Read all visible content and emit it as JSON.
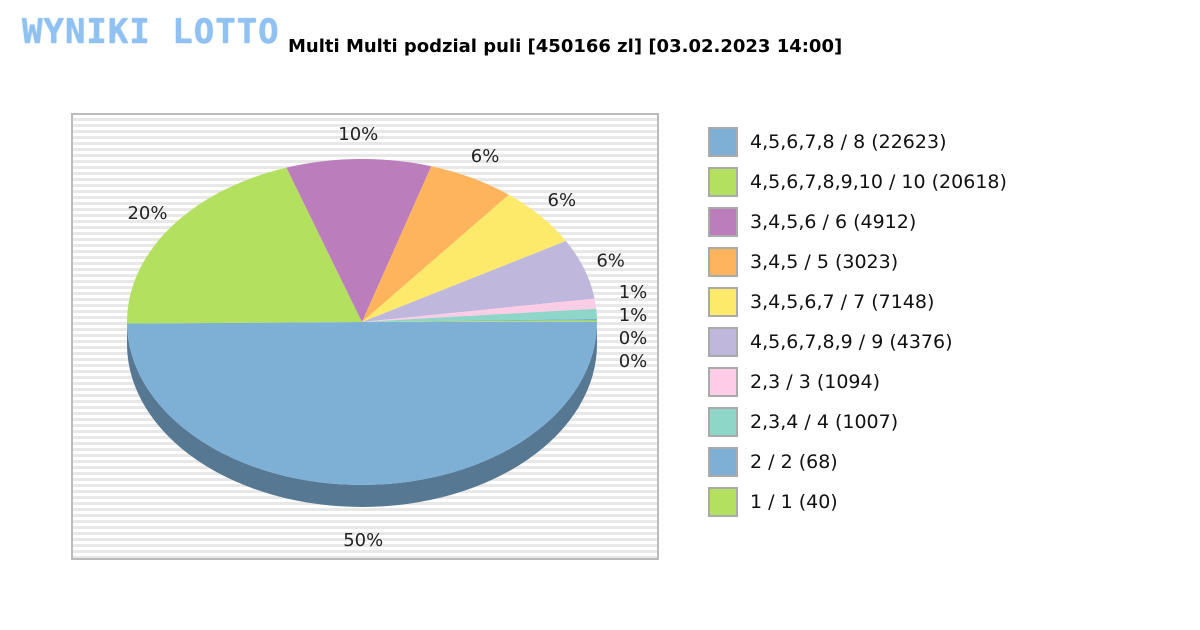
{
  "logo": "WYNIKI LOTTO",
  "title": "Multi Multi podzial puli [450166 zl] [03.02.2023 14:00]",
  "chart_data": {
    "type": "pie",
    "title": "Multi Multi podzial puli [450166 zl] [03.02.2023 14:00]",
    "slices": [
      {
        "label": "4,5,6,7,8 / 8 (22623)",
        "percent": 50,
        "percent_label": "50%",
        "color": "#7eb0d6"
      },
      {
        "label": "4,5,6,7,8,9,10 / 10 (20618)",
        "percent": 20,
        "percent_label": "20%",
        "color": "#b3e05e"
      },
      {
        "label": "3,4,5,6 / 6 (4912)",
        "percent": 10,
        "percent_label": "10%",
        "color": "#bb7dbb"
      },
      {
        "label": "3,4,5 / 5 (3023)",
        "percent": 6,
        "percent_label": "6%",
        "color": "#fdb45c"
      },
      {
        "label": "3,4,5,6,7 / 7 (7148)",
        "percent": 6,
        "percent_label": "6%",
        "color": "#fdea6a"
      },
      {
        "label": "4,5,6,7,8,9 / 9 (4376)",
        "percent": 6,
        "percent_label": "6%",
        "color": "#c0b8dc"
      },
      {
        "label": "2,3 / 3 (1094)",
        "percent": 1,
        "percent_label": "1%",
        "color": "#fdcce6"
      },
      {
        "label": "2,3,4 / 4 (1007)",
        "percent": 1,
        "percent_label": "1%",
        "color": "#8ed6c8"
      },
      {
        "label": "2 / 2 (68)",
        "percent": 0,
        "percent_label": "0%",
        "color": "#7eb0d6"
      },
      {
        "label": "1 / 1 (40)",
        "percent": 0,
        "percent_label": "0%",
        "color": "#b3e05e"
      }
    ],
    "legend": "right"
  }
}
